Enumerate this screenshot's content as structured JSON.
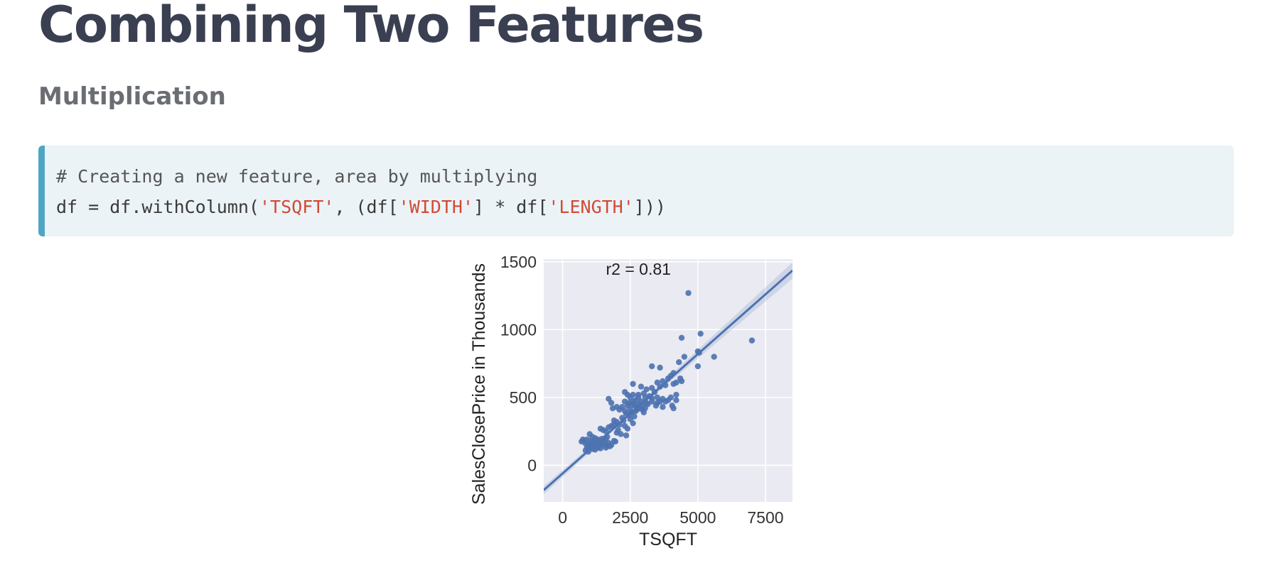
{
  "slide": {
    "title": "Combining Two Features",
    "section": "Multiplication"
  },
  "code": {
    "comment": "# Creating a new feature, area by multiplying",
    "line2": {
      "p1": "df = df.withColumn(",
      "s1": "'TSQFT'",
      "p2": ", (df[",
      "s2": "'WIDTH'",
      "p3": "] * df[",
      "s3": "'LENGTH'",
      "p4": "]))"
    },
    "colors": {
      "background": "#ecf3f7",
      "accent_border": "#4fa6c4",
      "string": "#d14a36"
    }
  },
  "chart_data": {
    "type": "scatter",
    "title": "",
    "xlabel": "TSQFT",
    "ylabel": "SalesClosePrice in Thousands",
    "annotation": "r2 = 0.81",
    "xlim": [
      -700,
      8500
    ],
    "ylim": [
      -270,
      1520
    ],
    "xticks": [
      0,
      2500,
      5000,
      7500
    ],
    "yticks": [
      0,
      500,
      1000,
      1500
    ],
    "grid": true,
    "colors": {
      "background": "#eaeaf2",
      "points": "#4c72b0",
      "band": "#4c72b0"
    },
    "regression": {
      "slope": 0.176,
      "intercept": -60,
      "ci_half_width_at": [
        {
          "x": -700,
          "w": 30
        },
        {
          "x": 2500,
          "w": 12
        },
        {
          "x": 8500,
          "w": 60
        }
      ]
    },
    "points": [
      [
        4650,
        1270
      ],
      [
        5100,
        970
      ],
      [
        7000,
        920
      ],
      [
        4400,
        940
      ],
      [
        5000,
        840
      ],
      [
        5050,
        830
      ],
      [
        5600,
        800
      ],
      [
        5000,
        730
      ],
      [
        4500,
        800
      ],
      [
        4300,
        760
      ],
      [
        3300,
        730
      ],
      [
        3600,
        720
      ],
      [
        4000,
        660
      ],
      [
        4100,
        680
      ],
      [
        4400,
        620
      ],
      [
        4200,
        610
      ],
      [
        4350,
        640
      ],
      [
        3900,
        640
      ],
      [
        3700,
        620
      ],
      [
        3500,
        610
      ],
      [
        3800,
        590
      ],
      [
        3600,
        580
      ],
      [
        4100,
        600
      ],
      [
        3300,
        570
      ],
      [
        2600,
        600
      ],
      [
        2900,
        580
      ],
      [
        3100,
        560
      ],
      [
        3400,
        540
      ],
      [
        3000,
        530
      ],
      [
        2800,
        520
      ],
      [
        3200,
        510
      ],
      [
        3500,
        500
      ],
      [
        3300,
        495
      ],
      [
        3700,
        490
      ],
      [
        4000,
        500
      ],
      [
        4200,
        520
      ],
      [
        2400,
        520
      ],
      [
        2500,
        500
      ],
      [
        2700,
        480
      ],
      [
        2900,
        470
      ],
      [
        3100,
        460
      ],
      [
        3300,
        470
      ],
      [
        3600,
        470
      ],
      [
        3800,
        470
      ],
      [
        3500,
        460
      ],
      [
        4050,
        440
      ],
      [
        4100,
        420
      ],
      [
        2300,
        470
      ],
      [
        2450,
        460
      ],
      [
        2550,
        450
      ],
      [
        2650,
        440
      ],
      [
        2750,
        430
      ],
      [
        2850,
        420
      ],
      [
        2950,
        410
      ],
      [
        3050,
        420
      ],
      [
        2800,
        450
      ],
      [
        2600,
        470
      ],
      [
        2400,
        440
      ],
      [
        2200,
        430
      ],
      [
        2000,
        430
      ],
      [
        1800,
        460
      ],
      [
        1700,
        490
      ],
      [
        1850,
        420
      ],
      [
        2100,
        410
      ],
      [
        2300,
        400
      ],
      [
        2500,
        410
      ],
      [
        2700,
        400
      ],
      [
        3000,
        390
      ],
      [
        2350,
        380
      ],
      [
        2650,
        360
      ],
      [
        2500,
        340
      ],
      [
        2200,
        350
      ],
      [
        2000,
        320
      ],
      [
        1900,
        300
      ],
      [
        1800,
        290
      ],
      [
        2100,
        300
      ],
      [
        2300,
        290
      ],
      [
        2600,
        310
      ],
      [
        2400,
        270
      ],
      [
        1700,
        280
      ],
      [
        1500,
        260
      ],
      [
        1400,
        270
      ],
      [
        1600,
        250
      ],
      [
        2000,
        240
      ],
      [
        2150,
        230
      ],
      [
        2350,
        220
      ],
      [
        1900,
        180
      ],
      [
        1950,
        175
      ],
      [
        1700,
        165
      ],
      [
        1800,
        150
      ],
      [
        1600,
        190
      ],
      [
        1500,
        180
      ],
      [
        1400,
        170
      ],
      [
        1300,
        190
      ],
      [
        1200,
        200
      ],
      [
        1100,
        210
      ],
      [
        1000,
        230
      ],
      [
        900,
        190
      ],
      [
        800,
        180
      ],
      [
        700,
        175
      ],
      [
        850,
        160
      ],
      [
        950,
        150
      ],
      [
        1050,
        160
      ],
      [
        1150,
        170
      ],
      [
        1250,
        150
      ],
      [
        1350,
        140
      ],
      [
        1450,
        150
      ],
      [
        1550,
        160
      ],
      [
        1650,
        145
      ],
      [
        1300,
        130
      ],
      [
        1100,
        120
      ],
      [
        1000,
        140
      ],
      [
        900,
        130
      ],
      [
        850,
        110
      ],
      [
        950,
        100
      ],
      [
        1200,
        115
      ],
      [
        1400,
        125
      ],
      [
        1600,
        130
      ],
      [
        1750,
        140
      ],
      [
        750,
        190
      ],
      [
        1050,
        180
      ],
      [
        1250,
        175
      ],
      [
        1450,
        195
      ],
      [
        1650,
        210
      ],
      [
        2050,
        260
      ],
      [
        2250,
        330
      ],
      [
        2450,
        370
      ],
      [
        2550,
        390
      ],
      [
        2750,
        410
      ],
      [
        2950,
        440
      ],
      [
        3150,
        450
      ],
      [
        3450,
        440
      ],
      [
        3700,
        430
      ],
      [
        3900,
        480
      ],
      [
        4200,
        480
      ],
      [
        2600,
        520
      ],
      [
        2300,
        540
      ],
      [
        2800,
        500
      ],
      [
        3050,
        500
      ],
      [
        1900,
        330
      ]
    ]
  }
}
